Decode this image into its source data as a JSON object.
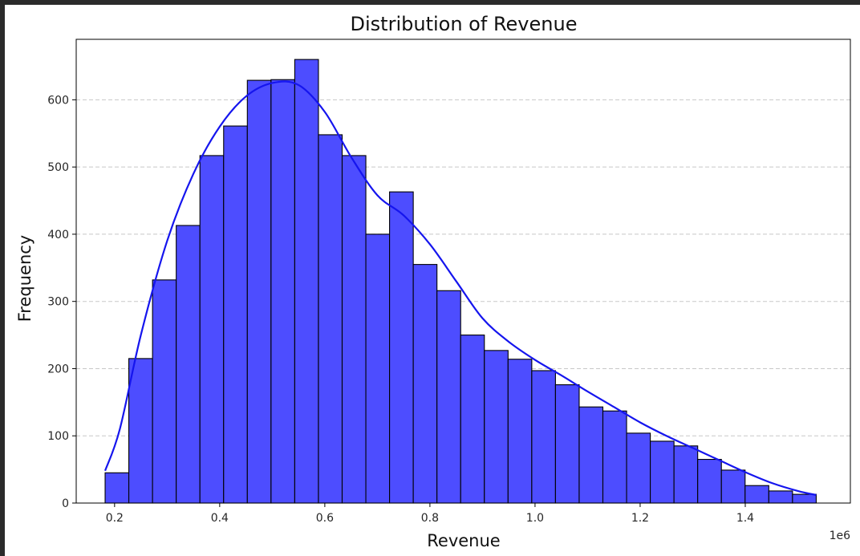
{
  "chart_data": {
    "type": "bar",
    "title": "Distribution of Revenue",
    "xlabel": "Revenue",
    "ylabel": "Frequency",
    "x_offset_label": "1e6",
    "x_scale": 1000000,
    "xlim": [
      0.127,
      1.6
    ],
    "ylim": [
      0,
      690
    ],
    "xticks": [
      0.2,
      0.4,
      0.6,
      0.8,
      1.0,
      1.2,
      1.4
    ],
    "xtick_labels": [
      "0.2",
      "0.4",
      "0.6",
      "0.8",
      "1.0",
      "1.2",
      "1.4"
    ],
    "yticks": [
      0,
      100,
      200,
      300,
      400,
      500,
      600
    ],
    "ytick_labels": [
      "0",
      "100",
      "200",
      "300",
      "400",
      "500",
      "600"
    ],
    "grid": "y-dashed",
    "bar_color": "#4d4dff",
    "kde_color": "#1515ee",
    "bins": {
      "start": 0.182,
      "width": 0.0451,
      "counts": [
        45,
        215,
        332,
        413,
        517,
        561,
        629,
        630,
        660,
        548,
        517,
        400,
        463,
        355,
        316,
        250,
        227,
        214,
        197,
        176,
        143,
        137,
        104,
        92,
        85,
        65,
        49,
        26,
        18,
        13
      ]
    },
    "kde": {
      "x": [
        0.182,
        0.21,
        0.25,
        0.3,
        0.35,
        0.4,
        0.45,
        0.5,
        0.55,
        0.6,
        0.65,
        0.7,
        0.75,
        0.8,
        0.85,
        0.9,
        0.95,
        1.0,
        1.05,
        1.1,
        1.15,
        1.2,
        1.25,
        1.3,
        1.35,
        1.4,
        1.45,
        1.5,
        1.535
      ],
      "y": [
        48,
        110,
        250,
        390,
        490,
        560,
        605,
        625,
        622,
        582,
        515,
        458,
        428,
        385,
        330,
        275,
        240,
        213,
        190,
        166,
        143,
        120,
        100,
        82,
        64,
        46,
        30,
        18,
        12
      ]
    }
  }
}
